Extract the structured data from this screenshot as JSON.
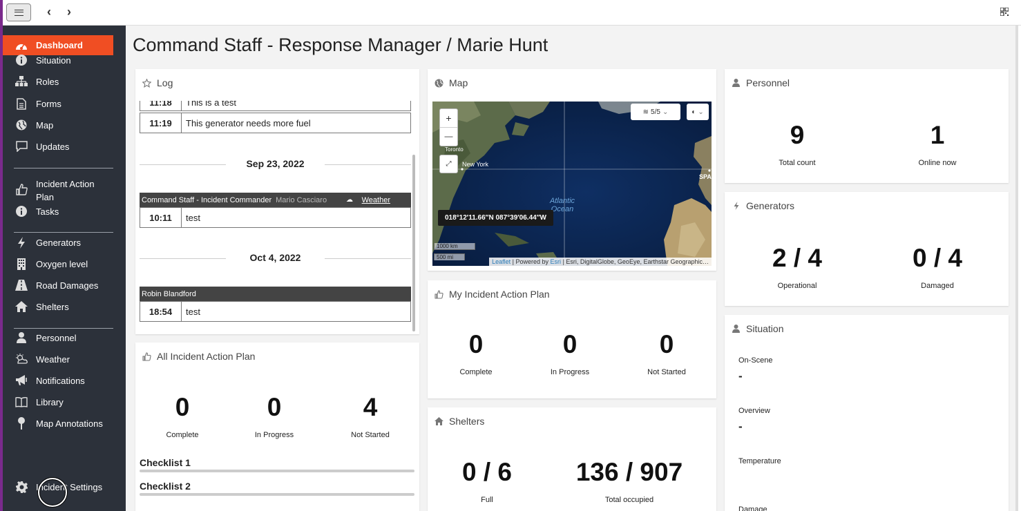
{
  "topbar": {
    "back": "‹",
    "forward": "›"
  },
  "sidebar": {
    "items": [
      {
        "label": "Dashboard",
        "icon": "dashboard-icon"
      },
      {
        "label": "Situation",
        "icon": "info-icon"
      },
      {
        "label": "Roles",
        "icon": "sitemap-icon"
      },
      {
        "label": "Forms",
        "icon": "document-icon"
      },
      {
        "label": "Map",
        "icon": "globe-icon"
      },
      {
        "label": "Updates",
        "icon": "comment-icon"
      },
      {
        "label": "Incident Action Plan",
        "icon": "thumbs-up-icon"
      },
      {
        "label": "Tasks",
        "icon": "info-icon"
      },
      {
        "label": "Generators",
        "icon": "bolt-icon"
      },
      {
        "label": "Oxygen level",
        "icon": "building-icon"
      },
      {
        "label": "Road Damages",
        "icon": "road-icon"
      },
      {
        "label": "Shelters",
        "icon": "home-icon"
      },
      {
        "label": "Personnel",
        "icon": "user-icon"
      },
      {
        "label": "Weather",
        "icon": "weather-icon"
      },
      {
        "label": "Notifications",
        "icon": "megaphone-icon"
      },
      {
        "label": "Library",
        "icon": "book-icon"
      },
      {
        "label": "Map Annotations",
        "icon": "pin-icon"
      }
    ],
    "settings": "Incident Settings"
  },
  "page": {
    "title": "Command Staff - Response Manager / Marie Hunt"
  },
  "log": {
    "title": "Log",
    "entries": [
      {
        "time": "11:18",
        "text": "This is a test"
      },
      {
        "time": "11:19",
        "text": "This generator needs more fuel"
      }
    ],
    "date1": "Sep 23, 2022",
    "group1": {
      "role": "Command Staff - Incident Commander",
      "who": "Mario Casciaro",
      "tag": "Weather"
    },
    "entry3": {
      "time": "10:11",
      "text": "test"
    },
    "date2": "Oct 4, 2022",
    "group2": {
      "role": "Robin Blandford"
    },
    "entry4": {
      "time": "18:54",
      "text": "test"
    }
  },
  "all_iap": {
    "title": "All Incident Action Plan",
    "complete": "0",
    "complete_label": "Complete",
    "in_progress": "0",
    "in_progress_label": "In Progress",
    "not_started": "4",
    "not_started_label": "Not Started",
    "checklists": [
      "Checklist 1",
      "Checklist 2"
    ]
  },
  "map": {
    "title": "Map",
    "layers": "5/5",
    "zoom_in": "+",
    "zoom_out": "—",
    "coord": "018°12′11.66″N 087°39′06.44″W",
    "labels": {
      "toronto": "Toronto",
      "new_york": "New York",
      "atlantic": "Atlantic Ocean",
      "spain": "SPA"
    },
    "scale_km": "1000 km",
    "scale_mi": "500 mi",
    "attribution_leaflet": "Leaflet",
    "attribution_powered": "| Powered by",
    "attribution_esri": "Esri",
    "attribution_rest": "| Esri, DigitalGlobe, GeoEye, Earthstar Geographic…"
  },
  "my_iap": {
    "title": "My Incident Action Plan",
    "complete": "0",
    "complete_label": "Complete",
    "in_progress": "0",
    "in_progress_label": "In Progress",
    "not_started": "0",
    "not_started_label": "Not Started"
  },
  "shelters": {
    "title": "Shelters",
    "full": "0 / 6",
    "full_label": "Full",
    "occupied": "136 / 907",
    "occupied_label": "Total occupied"
  },
  "personnel": {
    "title": "Personnel",
    "total": "9",
    "total_label": "Total count",
    "online": "1",
    "online_label": "Online now"
  },
  "generators": {
    "title": "Generators",
    "operational": "2 / 4",
    "operational_label": "Operational",
    "damaged": "0 / 4",
    "damaged_label": "Damaged"
  },
  "situation": {
    "title": "Situation",
    "on_scene_label": "On-Scene",
    "on_scene": "-",
    "overview_label": "Overview",
    "overview": "-",
    "temperature_label": "Temperature",
    "damage_label": "Damage"
  }
}
